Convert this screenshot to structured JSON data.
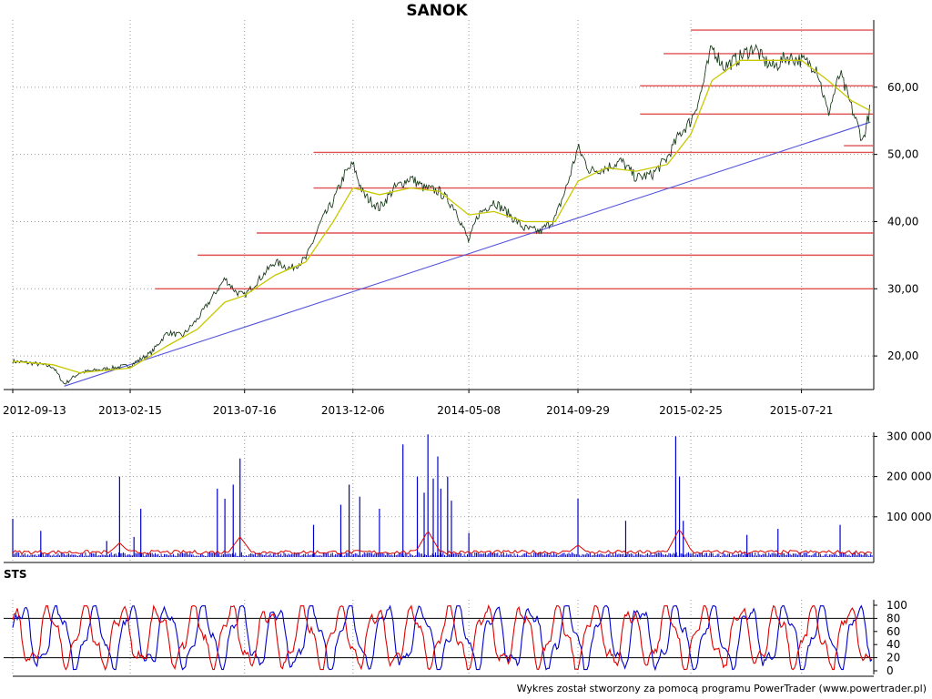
{
  "title": "SANOK",
  "footer": "Wykres został stworzony za pomocą programu PowerTrader (www.powertrader.pl)",
  "chart_data": [
    {
      "type": "line",
      "panel": "price",
      "title": "SANOK",
      "x_tick_labels": [
        "2012-09-13",
        "2013-02-15",
        "2013-07-16",
        "2013-12-06",
        "2014-05-08",
        "2014-09-29",
        "2015-02-25",
        "2015-07-21"
      ],
      "y_tick_labels": [
        "20,00",
        "30,00",
        "40,00",
        "50,00",
        "60,00"
      ],
      "ylim": [
        15,
        70
      ],
      "grid": true,
      "series": [
        {
          "key": "price",
          "color": "#000000",
          "points": [
            [
              "2012-09-13",
              19.2
            ],
            [
              "2012-10-10",
              18.9
            ],
            [
              "2012-11-05",
              18.4
            ],
            [
              "2012-11-20",
              15.8
            ],
            [
              "2012-12-10",
              17.5
            ],
            [
              "2013-01-10",
              18.0
            ],
            [
              "2013-02-15",
              18.6
            ],
            [
              "2013-03-15",
              20.5
            ],
            [
              "2013-04-05",
              23.5
            ],
            [
              "2013-04-25",
              23.0
            ],
            [
              "2013-05-15",
              25.5
            ],
            [
              "2013-06-05",
              29.0
            ],
            [
              "2013-06-20",
              31.5
            ],
            [
              "2013-07-05",
              29.5
            ],
            [
              "2013-07-16",
              29.0
            ],
            [
              "2013-08-05",
              31.5
            ],
            [
              "2013-08-25",
              34.0
            ],
            [
              "2013-09-15",
              33.0
            ],
            [
              "2013-10-05",
              34.5
            ],
            [
              "2013-10-25",
              40.0
            ],
            [
              "2013-11-10",
              43.0
            ],
            [
              "2013-11-25",
              47.0
            ],
            [
              "2013-12-06",
              48.5
            ],
            [
              "2013-12-20",
              44.0
            ],
            [
              "2014-01-10",
              42.0
            ],
            [
              "2014-01-30",
              45.0
            ],
            [
              "2014-02-20",
              46.5
            ],
            [
              "2014-03-10",
              45.0
            ],
            [
              "2014-03-30",
              44.5
            ],
            [
              "2014-04-20",
              42.0
            ],
            [
              "2014-05-08",
              37.0
            ],
            [
              "2014-05-20",
              41.0
            ],
            [
              "2014-06-10",
              43.0
            ],
            [
              "2014-07-01",
              41.0
            ],
            [
              "2014-07-20",
              39.0
            ],
            [
              "2014-08-10",
              38.5
            ],
            [
              "2014-08-30",
              40.5
            ],
            [
              "2014-09-15",
              45.5
            ],
            [
              "2014-09-29",
              51.0
            ],
            [
              "2014-10-15",
              47.5
            ],
            [
              "2014-11-05",
              48.0
            ],
            [
              "2014-11-25",
              49.0
            ],
            [
              "2014-12-15",
              46.5
            ],
            [
              "2015-01-05",
              47.0
            ],
            [
              "2015-01-25",
              49.5
            ],
            [
              "2015-02-10",
              53.0
            ],
            [
              "2015-02-25",
              55.0
            ],
            [
              "2015-03-10",
              59.0
            ],
            [
              "2015-03-25",
              66.0
            ],
            [
              "2015-04-10",
              63.0
            ],
            [
              "2015-05-01",
              64.5
            ],
            [
              "2015-05-20",
              66.0
            ],
            [
              "2015-06-01",
              64.0
            ],
            [
              "2015-06-15",
              63.0
            ],
            [
              "2015-07-01",
              64.5
            ],
            [
              "2015-07-21",
              64.0
            ],
            [
              "2015-08-10",
              63.0
            ],
            [
              "2015-08-25",
              56.0
            ],
            [
              "2015-09-10",
              62.0
            ],
            [
              "2015-09-25",
              57.0
            ],
            [
              "2015-10-10",
              52.0
            ],
            [
              "2015-10-20",
              57.0
            ]
          ]
        },
        {
          "key": "moving_average",
          "color": "#c8c800",
          "points": [
            [
              "2012-09-13",
              19.2
            ],
            [
              "2012-11-05",
              18.7
            ],
            [
              "2012-12-10",
              17.5
            ],
            [
              "2013-02-15",
              18.2
            ],
            [
              "2013-04-05",
              21.5
            ],
            [
              "2013-05-15",
              24.0
            ],
            [
              "2013-06-20",
              28.0
            ],
            [
              "2013-07-16",
              29.0
            ],
            [
              "2013-08-25",
              32.0
            ],
            [
              "2013-10-05",
              34.0
            ],
            [
              "2013-11-10",
              40.0
            ],
            [
              "2013-12-06",
              45.0
            ],
            [
              "2014-01-10",
              44.0
            ],
            [
              "2014-02-20",
              45.0
            ],
            [
              "2014-03-30",
              44.5
            ],
            [
              "2014-05-08",
              41.0
            ],
            [
              "2014-06-10",
              41.5
            ],
            [
              "2014-07-20",
              40.0
            ],
            [
              "2014-08-30",
              40.0
            ],
            [
              "2014-09-29",
              46.0
            ],
            [
              "2014-11-05",
              48.0
            ],
            [
              "2014-12-15",
              47.5
            ],
            [
              "2015-01-25",
              48.5
            ],
            [
              "2015-02-25",
              53.0
            ],
            [
              "2015-03-25",
              61.0
            ],
            [
              "2015-05-01",
              64.0
            ],
            [
              "2015-06-15",
              64.0
            ],
            [
              "2015-07-21",
              64.0
            ],
            [
              "2015-08-25",
              61.0
            ],
            [
              "2015-09-25",
              58.0
            ],
            [
              "2015-10-20",
              56.5
            ]
          ]
        }
      ],
      "support_trendline": {
        "color": "#5555dd",
        "from": [
          "2012-11-20",
          15.5
        ],
        "to": [
          "2015-10-20",
          54.8
        ]
      },
      "horizontal_levels": [
        {
          "y": 68.5,
          "from": "2015-02-25"
        },
        {
          "y": 65.0,
          "from": "2015-01-20"
        },
        {
          "y": 60.2,
          "from": "2014-12-20"
        },
        {
          "y": 56.0,
          "from": "2014-12-20"
        },
        {
          "y": 51.3,
          "from": "2015-09-15"
        },
        {
          "y": 50.3,
          "from": "2013-10-15"
        },
        {
          "y": 45.0,
          "from": "2013-10-15"
        },
        {
          "y": 38.3,
          "from": "2013-08-01"
        },
        {
          "y": 35.0,
          "from": "2013-05-15"
        },
        {
          "y": 30.0,
          "from": "2013-03-20"
        }
      ],
      "level_color": "#e05050"
    },
    {
      "type": "bar",
      "panel": "volume",
      "y_tick_labels": [
        "100 000",
        "200 000",
        "300 000"
      ],
      "ylim": [
        0,
        310000
      ],
      "bar_color": "#0000cc",
      "avg_color": "#dd0000",
      "baseline_volume": 6000,
      "spikes": [
        [
          "2012-09-13",
          95000
        ],
        [
          "2012-10-20",
          65000
        ],
        [
          "2013-01-15",
          40000
        ],
        [
          "2013-02-01",
          200000
        ],
        [
          "2013-02-20",
          50000
        ],
        [
          "2013-03-01",
          120000
        ],
        [
          "2013-06-10",
          170000
        ],
        [
          "2013-06-20",
          145000
        ],
        [
          "2013-07-01",
          180000
        ],
        [
          "2013-07-10",
          245000
        ],
        [
          "2013-10-15",
          80000
        ],
        [
          "2013-11-20",
          130000
        ],
        [
          "2013-12-01",
          180000
        ],
        [
          "2013-12-15",
          150000
        ],
        [
          "2014-01-10",
          120000
        ],
        [
          "2014-02-10",
          280000
        ],
        [
          "2014-03-01",
          200000
        ],
        [
          "2014-03-10",
          160000
        ],
        [
          "2014-03-15",
          305000
        ],
        [
          "2014-03-22",
          195000
        ],
        [
          "2014-03-28",
          250000
        ],
        [
          "2014-04-01",
          170000
        ],
        [
          "2014-04-10",
          200000
        ],
        [
          "2014-04-15",
          140000
        ],
        [
          "2014-05-08",
          60000
        ],
        [
          "2014-09-29",
          145000
        ],
        [
          "2014-12-01",
          90000
        ],
        [
          "2015-02-05",
          300000
        ],
        [
          "2015-02-10",
          200000
        ],
        [
          "2015-02-15",
          90000
        ],
        [
          "2015-05-10",
          55000
        ],
        [
          "2015-06-20",
          70000
        ],
        [
          "2015-09-10",
          80000
        ]
      ],
      "average_level": 12000,
      "average_bumps": [
        [
          "2013-02-01",
          35000
        ],
        [
          "2013-07-10",
          50000
        ],
        [
          "2014-03-15",
          65000
        ],
        [
          "2014-09-29",
          30000
        ],
        [
          "2015-02-10",
          70000
        ]
      ]
    },
    {
      "type": "line",
      "panel": "oscillator",
      "label": "STS",
      "y_tick_labels": [
        "0",
        "20",
        "40",
        "60",
        "80",
        "100"
      ],
      "ylim": [
        0,
        100
      ],
      "reference_lines": [
        20,
        80
      ],
      "series": [
        {
          "key": "k",
          "color": "#0000cc",
          "period_days": 48,
          "amplitude": 42,
          "center": 52,
          "phase": 0.0
        },
        {
          "key": "d",
          "color": "#dd0000",
          "period_days": 48,
          "amplitude": 40,
          "center": 52,
          "phase": 0.25
        }
      ]
    }
  ]
}
